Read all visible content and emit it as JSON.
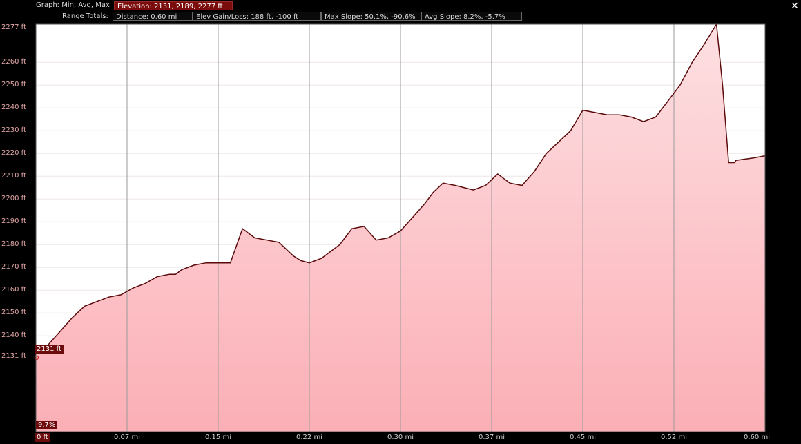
{
  "header": {
    "graph_label": "Graph:",
    "graph_mode": "Min, Avg, Max",
    "elevation": "Elevation: 2131, 2189, 2277 ft",
    "range_totals_label": "Range Totals:",
    "distance": "Distance: 0.60 mi",
    "elev_gain_loss": "Elev Gain/Loss: 188 ft, -100 ft",
    "max_slope": "Max Slope: 50.1%, -90.6%",
    "avg_slope": "Avg Slope: 8.2%, -5.7%"
  },
  "close_glyph": "✕",
  "markers": {
    "start_elevation": "2131 ft",
    "slope": "9.7%",
    "start_distance": "0 ft"
  },
  "colors": {
    "fill_top": "#fde0e2",
    "fill_bottom": "#fbafb6",
    "line": "#5a0a0a",
    "accent": "#7a0c0c"
  },
  "chart_data": {
    "type": "area",
    "title": "",
    "xlabel": "",
    "ylabel": "",
    "y_tick_labels": [
      "2277 ft",
      "2260 ft",
      "2250 ft",
      "2240 ft",
      "2230 ft",
      "2220 ft",
      "2210 ft",
      "2200 ft",
      "2190 ft",
      "2180 ft",
      "2170 ft",
      "2160 ft",
      "2150 ft",
      "2140 ft",
      "2131 ft"
    ],
    "x_tick_labels": [
      "0 ft",
      "0.07 mi",
      "0.15 mi",
      "0.22 mi",
      "0.30 mi",
      "0.37 mi",
      "0.45 mi",
      "0.52 mi",
      "0.60 mi"
    ],
    "xlim": [
      0,
      0.6
    ],
    "ylim": [
      2131,
      2277
    ],
    "grid": true,
    "x": [
      0,
      0.01,
      0.02,
      0.03,
      0.04,
      0.05,
      0.06,
      0.07,
      0.08,
      0.09,
      0.1,
      0.11,
      0.115,
      0.12,
      0.13,
      0.14,
      0.15,
      0.16,
      0.17,
      0.18,
      0.19,
      0.2,
      0.212,
      0.218,
      0.225,
      0.235,
      0.25,
      0.26,
      0.27,
      0.28,
      0.29,
      0.3,
      0.31,
      0.32,
      0.327,
      0.335,
      0.345,
      0.36,
      0.37,
      0.38,
      0.39,
      0.4,
      0.41,
      0.42,
      0.43,
      0.44,
      0.45,
      0.46,
      0.47,
      0.48,
      0.49,
      0.5,
      0.51,
      0.52,
      0.53,
      0.54,
      0.55,
      0.56,
      0.565,
      0.57,
      0.575,
      0.576,
      0.59,
      0.6
    ],
    "y": [
      2132,
      2136,
      2142,
      2148,
      2153,
      2155,
      2157,
      2158,
      2161,
      2163,
      2166,
      2167,
      2167,
      2169,
      2171,
      2172,
      2172,
      2172,
      2187,
      2183,
      2182,
      2181,
      2175,
      2173,
      2172,
      2174,
      2180,
      2187,
      2188,
      2182,
      2183,
      2186,
      2192,
      2198,
      2203,
      2207,
      2206,
      2204,
      2206,
      2211,
      2207,
      2206,
      2212,
      2220,
      2225,
      2230,
      2239,
      2238,
      2237,
      2237,
      2236,
      2234,
      2236,
      2243,
      2250,
      2260,
      2268,
      2277,
      2250,
      2216,
      2216,
      2217,
      2218,
      2219
    ],
    "start_marker": {
      "x": 0,
      "y": 2131
    }
  }
}
